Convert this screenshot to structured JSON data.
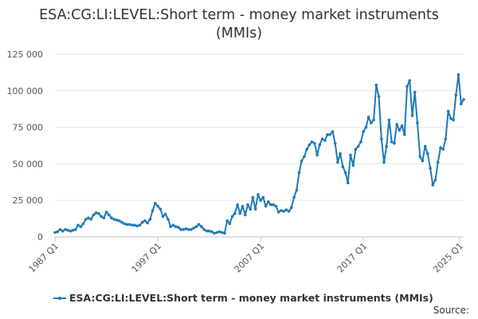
{
  "chart_data": {
    "type": "line",
    "title": "ESA:CG:LI:LEVEL:Short term - money market instruments (MMIs)",
    "title_lines": [
      "ESA:CG:LI:LEVEL:Short term - money market instruments",
      "(MMIs)"
    ],
    "xlabel": "",
    "ylabel": "",
    "x_tick_labels": [
      "1987 Q1",
      "1997 Q1",
      "2007 Q1",
      "2017 Q1",
      "2025 Q1"
    ],
    "y_tick_labels": [
      "0",
      "25 000",
      "50 000",
      "75 000",
      "100 000",
      "125 000"
    ],
    "ylim": [
      0,
      125000
    ],
    "xlim": [
      1987.0,
      2025.0
    ],
    "grid": "horizontal",
    "legend_position": "bottom",
    "credit": "Source:",
    "color": "#1f7ab8",
    "series": [
      {
        "name": "ESA:CG:LI:LEVEL:Short term - money market instruments (MMIs)",
        "points": [
          [
            1987.0,
            3000
          ],
          [
            1987.25,
            3500
          ],
          [
            1987.5,
            5000
          ],
          [
            1987.75,
            4000
          ],
          [
            1988.0,
            5000
          ],
          [
            1988.25,
            4500
          ],
          [
            1988.5,
            4000
          ],
          [
            1988.75,
            4500
          ],
          [
            1989.0,
            5000
          ],
          [
            1989.25,
            8000
          ],
          [
            1989.5,
            7000
          ],
          [
            1989.75,
            9000
          ],
          [
            1990.0,
            12000
          ],
          [
            1990.25,
            13000
          ],
          [
            1990.5,
            12000
          ],
          [
            1990.75,
            15000
          ],
          [
            1991.0,
            16500
          ],
          [
            1991.25,
            16000
          ],
          [
            1991.5,
            14000
          ],
          [
            1991.75,
            13000
          ],
          [
            1992.0,
            17000
          ],
          [
            1992.25,
            15000
          ],
          [
            1992.5,
            13000
          ],
          [
            1992.75,
            12000
          ],
          [
            1993.0,
            11500
          ],
          [
            1993.25,
            11000
          ],
          [
            1993.5,
            10000
          ],
          [
            1993.75,
            9000
          ],
          [
            1994.0,
            8500
          ],
          [
            1994.25,
            8500
          ],
          [
            1994.5,
            8000
          ],
          [
            1994.75,
            8000
          ],
          [
            1995.0,
            7500
          ],
          [
            1995.25,
            8000
          ],
          [
            1995.5,
            10000
          ],
          [
            1995.75,
            11000
          ],
          [
            1996.0,
            9500
          ],
          [
            1996.25,
            12000
          ],
          [
            1996.5,
            18000
          ],
          [
            1996.75,
            23000
          ],
          [
            1997.0,
            21000
          ],
          [
            1997.25,
            19000
          ],
          [
            1997.5,
            14000
          ],
          [
            1997.75,
            15500
          ],
          [
            1998.0,
            12000
          ],
          [
            1998.25,
            7000
          ],
          [
            1998.5,
            8000
          ],
          [
            1998.75,
            7000
          ],
          [
            1999.0,
            6500
          ],
          [
            1999.25,
            5000
          ],
          [
            1999.5,
            5000
          ],
          [
            1999.75,
            5500
          ],
          [
            2000.0,
            5000
          ],
          [
            2000.25,
            5000
          ],
          [
            2000.5,
            6000
          ],
          [
            2000.75,
            7000
          ],
          [
            2001.0,
            8500
          ],
          [
            2001.25,
            7000
          ],
          [
            2001.5,
            5000
          ],
          [
            2001.75,
            4000
          ],
          [
            2002.0,
            4000
          ],
          [
            2002.25,
            3500
          ],
          [
            2002.5,
            2500
          ],
          [
            2002.75,
            3000
          ],
          [
            2003.0,
            3500
          ],
          [
            2003.25,
            3000
          ],
          [
            2003.5,
            2500
          ],
          [
            2003.75,
            11000
          ],
          [
            2004.0,
            9000
          ],
          [
            2004.25,
            14000
          ],
          [
            2004.5,
            16000
          ],
          [
            2004.75,
            22000
          ],
          [
            2005.0,
            16000
          ],
          [
            2005.25,
            21000
          ],
          [
            2005.5,
            15000
          ],
          [
            2005.75,
            22000
          ],
          [
            2006.0,
            19000
          ],
          [
            2006.25,
            27000
          ],
          [
            2006.5,
            19000
          ],
          [
            2006.75,
            29000
          ],
          [
            2007.0,
            25000
          ],
          [
            2007.25,
            27000
          ],
          [
            2007.5,
            21000
          ],
          [
            2007.75,
            24000
          ],
          [
            2008.0,
            22000
          ],
          [
            2008.25,
            22000
          ],
          [
            2008.5,
            21000
          ],
          [
            2008.75,
            17000
          ],
          [
            2009.0,
            18000
          ],
          [
            2009.25,
            17500
          ],
          [
            2009.5,
            18500
          ],
          [
            2009.75,
            17500
          ],
          [
            2010.0,
            20000
          ],
          [
            2010.25,
            27000
          ],
          [
            2010.5,
            32000
          ],
          [
            2010.75,
            44000
          ],
          [
            2011.0,
            52000
          ],
          [
            2011.25,
            55000
          ],
          [
            2011.5,
            60000
          ],
          [
            2011.75,
            63000
          ],
          [
            2012.0,
            65000
          ],
          [
            2012.25,
            64000
          ],
          [
            2012.5,
            56000
          ],
          [
            2012.75,
            63000
          ],
          [
            2013.0,
            67000
          ],
          [
            2013.25,
            66000
          ],
          [
            2013.5,
            70000
          ],
          [
            2013.75,
            70000
          ],
          [
            2014.0,
            72000
          ],
          [
            2014.25,
            64000
          ],
          [
            2014.5,
            51000
          ],
          [
            2014.75,
            57000
          ],
          [
            2015.0,
            48000
          ],
          [
            2015.25,
            44000
          ],
          [
            2015.5,
            37000
          ],
          [
            2015.75,
            56000
          ],
          [
            2016.0,
            49000
          ],
          [
            2016.25,
            60000
          ],
          [
            2016.5,
            62000
          ],
          [
            2016.75,
            65000
          ],
          [
            2017.0,
            72000
          ],
          [
            2017.25,
            75000
          ],
          [
            2017.5,
            82000
          ],
          [
            2017.75,
            78000
          ],
          [
            2018.0,
            80000
          ],
          [
            2018.25,
            104000
          ],
          [
            2018.5,
            96000
          ],
          [
            2018.75,
            67000
          ],
          [
            2019.0,
            51000
          ],
          [
            2019.25,
            62000
          ],
          [
            2019.5,
            80000
          ],
          [
            2019.75,
            65000
          ],
          [
            2020.0,
            64000
          ],
          [
            2020.25,
            77000
          ],
          [
            2020.5,
            73000
          ],
          [
            2020.75,
            76000
          ],
          [
            2021.0,
            70000
          ],
          [
            2021.25,
            103000
          ],
          [
            2021.5,
            107000
          ],
          [
            2021.75,
            83000
          ],
          [
            2022.0,
            99000
          ],
          [
            2022.25,
            78000
          ],
          [
            2022.5,
            55000
          ],
          [
            2022.75,
            52000
          ],
          [
            2023.0,
            62000
          ],
          [
            2023.25,
            57000
          ],
          [
            2023.5,
            47000
          ],
          [
            2023.75,
            35500
          ],
          [
            2024.0,
            39000
          ],
          [
            2024.25,
            51000
          ],
          [
            2024.5,
            61000
          ],
          [
            2024.75,
            60000
          ],
          [
            2025.0,
            67000
          ],
          [
            2025.25,
            86000
          ],
          [
            2025.5,
            81000
          ],
          [
            2025.75,
            80000
          ],
          [
            2026.0,
            97000
          ],
          [
            2026.25,
            111000
          ],
          [
            2026.5,
            91000
          ],
          [
            2026.75,
            94000
          ]
        ]
      }
    ]
  }
}
